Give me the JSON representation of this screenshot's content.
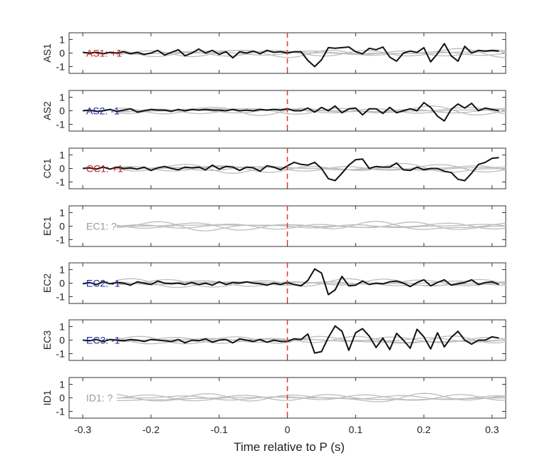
{
  "chart_data": {
    "type": "line",
    "xlabel": "Time relative to P (s)",
    "xlim": [
      -0.32,
      0.32
    ],
    "xticks": [
      -0.3,
      -0.2,
      -0.1,
      0,
      0.1,
      0.2,
      0.3
    ],
    "xtick_labels": [
      "-0.3",
      "-0.2",
      "-0.1",
      "0",
      "0.1",
      "0.2",
      "0.3"
    ],
    "ylim": [
      -1.5,
      1.5
    ],
    "yticks": [
      -1,
      0,
      1
    ],
    "ytick_labels": [
      "-1",
      "0",
      "1"
    ],
    "vline_x": 0,
    "vline_color": "#e8322a",
    "colors": {
      "black_trace": "#111111",
      "gray_trace": "#bdbdbd",
      "positive": "#c8201c",
      "negative": "#1c28a0",
      "unknown": "#9a9a9a"
    },
    "panels": [
      {
        "station": "AS1",
        "annotation": "AS1: +1",
        "polarity": "positive",
        "trace": {
          "x": [
            -0.3,
            -0.29,
            -0.28,
            -0.27,
            -0.26,
            -0.25,
            -0.24,
            -0.23,
            -0.22,
            -0.21,
            -0.2,
            -0.19,
            -0.18,
            -0.17,
            -0.16,
            -0.15,
            -0.14,
            -0.13,
            -0.12,
            -0.11,
            -0.1,
            -0.09,
            -0.08,
            -0.07,
            -0.06,
            -0.05,
            -0.04,
            -0.03,
            -0.02,
            -0.01,
            0,
            0.01,
            0.02,
            0.03,
            0.04,
            0.05,
            0.06,
            0.07,
            0.08,
            0.09,
            0.1,
            0.11,
            0.12,
            0.13,
            0.14,
            0.15,
            0.16,
            0.17,
            0.18,
            0.19,
            0.2,
            0.21,
            0.22,
            0.23,
            0.24,
            0.25,
            0.26,
            0.27,
            0.28,
            0.29,
            0.3,
            0.31
          ],
          "y": [
            0.05,
            0.0,
            0.05,
            -0.05,
            0.05,
            0.0,
            0.1,
            -0.05,
            0.05,
            -0.1,
            0.0,
            0.2,
            -0.15,
            0.05,
            0.25,
            -0.2,
            0.0,
            0.3,
            0.0,
            0.2,
            -0.1,
            0.1,
            -0.35,
            0.1,
            0.0,
            0.15,
            -0.05,
            0.2,
            0.05,
            0.1,
            0.0,
            0.1,
            0.1,
            -0.55,
            -1.0,
            -0.5,
            0.4,
            0.35,
            0.4,
            0.45,
            0.1,
            -0.05,
            0.35,
            0.25,
            0.45,
            -0.3,
            -0.6,
            0.0,
            0.15,
            0.05,
            0.4,
            -0.65,
            -0.05,
            0.7,
            -0.2,
            -0.6,
            0.5,
            0.0,
            0.2,
            0.15,
            0.2,
            0.15
          ]
        }
      },
      {
        "station": "AS2",
        "annotation": "AS2: -1",
        "polarity": "negative",
        "trace": {
          "x": [
            -0.3,
            -0.29,
            -0.28,
            -0.27,
            -0.26,
            -0.25,
            -0.24,
            -0.23,
            -0.22,
            -0.21,
            -0.2,
            -0.19,
            -0.18,
            -0.17,
            -0.16,
            -0.15,
            -0.14,
            -0.13,
            -0.12,
            -0.11,
            -0.1,
            -0.09,
            -0.08,
            -0.07,
            -0.06,
            -0.05,
            -0.04,
            -0.03,
            -0.02,
            -0.01,
            0,
            0.01,
            0.02,
            0.03,
            0.04,
            0.05,
            0.06,
            0.07,
            0.08,
            0.09,
            0.1,
            0.11,
            0.12,
            0.13,
            0.14,
            0.15,
            0.16,
            0.17,
            0.18,
            0.19,
            0.2,
            0.21,
            0.22,
            0.23,
            0.24,
            0.25,
            0.26,
            0.27,
            0.28,
            0.29,
            0.3,
            0.31
          ],
          "y": [
            0.0,
            0.05,
            -0.05,
            0.0,
            0.1,
            -0.05,
            0.05,
            0.15,
            -0.1,
            0.0,
            0.1,
            0.05,
            0.05,
            -0.05,
            0.1,
            0.0,
            0.1,
            0.05,
            0.1,
            0.05,
            0.05,
            0.0,
            0.1,
            0.0,
            0.05,
            0.0,
            0.1,
            0.05,
            0.1,
            0.05,
            0.15,
            0.0,
            0.0,
            0.2,
            -0.1,
            0.25,
            0.0,
            0.35,
            -0.15,
            0.15,
            0.2,
            -0.3,
            0.15,
            0.15,
            -0.2,
            0.25,
            -0.15,
            0.0,
            0.15,
            0.0,
            0.6,
            0.25,
            -0.4,
            -0.75,
            0.1,
            0.5,
            0.2,
            0.55,
            0.0,
            0.2,
            0.1,
            0.0
          ]
        }
      },
      {
        "station": "CC1",
        "annotation": "CC1: +1",
        "polarity": "positive",
        "trace": {
          "x": [
            -0.3,
            -0.29,
            -0.28,
            -0.27,
            -0.26,
            -0.25,
            -0.24,
            -0.23,
            -0.22,
            -0.21,
            -0.2,
            -0.19,
            -0.18,
            -0.17,
            -0.16,
            -0.15,
            -0.14,
            -0.13,
            -0.12,
            -0.11,
            -0.1,
            -0.09,
            -0.08,
            -0.07,
            -0.06,
            -0.05,
            -0.04,
            -0.03,
            -0.02,
            -0.01,
            0,
            0.01,
            0.02,
            0.03,
            0.04,
            0.05,
            0.06,
            0.07,
            0.08,
            0.09,
            0.1,
            0.11,
            0.12,
            0.13,
            0.14,
            0.15,
            0.16,
            0.17,
            0.18,
            0.19,
            0.2,
            0.21,
            0.22,
            0.23,
            0.24,
            0.25,
            0.26,
            0.27,
            0.28,
            0.29,
            0.3,
            0.31
          ],
          "y": [
            0.0,
            0.05,
            -0.05,
            0.1,
            -0.05,
            0.1,
            0.0,
            0.05,
            -0.05,
            0.1,
            -0.15,
            0.05,
            0.15,
            0.0,
            -0.1,
            0.1,
            0.05,
            0.1,
            -0.1,
            0.25,
            -0.05,
            0.15,
            0.1,
            -0.15,
            0.1,
            0.05,
            -0.2,
            0.2,
            0.1,
            -0.1,
            0.2,
            0.45,
            0.3,
            0.25,
            0.45,
            0.0,
            -0.75,
            -0.9,
            -0.35,
            0.25,
            0.65,
            0.7,
            0.0,
            0.15,
            0.1,
            0.1,
            0.4,
            -0.1,
            -0.15,
            0.1,
            -0.1,
            0.0,
            0.0,
            -0.2,
            -0.3,
            -0.8,
            -0.9,
            -0.35,
            0.3,
            0.45,
            0.75,
            0.8
          ]
        }
      },
      {
        "station": "EC1",
        "annotation": "EC1: ?",
        "polarity": "unknown",
        "trace": null
      },
      {
        "station": "EC2",
        "annotation": "EC2: -1",
        "polarity": "negative",
        "trace": {
          "x": [
            -0.3,
            -0.29,
            -0.28,
            -0.27,
            -0.26,
            -0.25,
            -0.24,
            -0.23,
            -0.22,
            -0.21,
            -0.2,
            -0.19,
            -0.18,
            -0.17,
            -0.16,
            -0.15,
            -0.14,
            -0.13,
            -0.12,
            -0.11,
            -0.1,
            -0.09,
            -0.08,
            -0.07,
            -0.06,
            -0.05,
            -0.04,
            -0.03,
            -0.02,
            -0.01,
            0,
            0.01,
            0.02,
            0.03,
            0.04,
            0.05,
            0.06,
            0.07,
            0.08,
            0.09,
            0.1,
            0.11,
            0.12,
            0.13,
            0.14,
            0.15,
            0.16,
            0.17,
            0.18,
            0.19,
            0.2,
            0.21,
            0.22,
            0.23,
            0.24,
            0.25,
            0.26,
            0.27,
            0.28,
            0.29,
            0.3,
            0.31
          ],
          "y": [
            -0.05,
            0.05,
            -0.1,
            0.1,
            -0.05,
            0.05,
            0.0,
            -0.15,
            0.1,
            0.0,
            -0.1,
            0.15,
            0.0,
            -0.05,
            0.0,
            -0.1,
            0.05,
            -0.1,
            0.0,
            -0.15,
            0.1,
            -0.1,
            0.05,
            0.0,
            0.1,
            0.0,
            -0.05,
            -0.15,
            0.0,
            -0.1,
            0.05,
            -0.1,
            -0.2,
            0.2,
            1.05,
            0.75,
            -0.85,
            -0.5,
            0.5,
            -0.2,
            -0.15,
            0.15,
            -0.1,
            0.0,
            -0.05,
            0.1,
            0.15,
            0.0,
            -0.25,
            0.05,
            0.25,
            -0.2,
            0.05,
            0.25,
            -0.15,
            -0.05,
            0.05,
            0.25,
            -0.1,
            0.05,
            0.1,
            -0.1
          ]
        }
      },
      {
        "station": "EC3",
        "annotation": "EC3: -1",
        "polarity": "negative",
        "trace": {
          "x": [
            -0.3,
            -0.29,
            -0.28,
            -0.27,
            -0.26,
            -0.25,
            -0.24,
            -0.23,
            -0.22,
            -0.21,
            -0.2,
            -0.19,
            -0.18,
            -0.17,
            -0.16,
            -0.15,
            -0.14,
            -0.13,
            -0.12,
            -0.11,
            -0.1,
            -0.09,
            -0.08,
            -0.07,
            -0.06,
            -0.05,
            -0.04,
            -0.03,
            -0.02,
            -0.01,
            0,
            0.01,
            0.02,
            0.03,
            0.04,
            0.05,
            0.06,
            0.07,
            0.08,
            0.09,
            0.1,
            0.11,
            0.12,
            0.13,
            0.14,
            0.15,
            0.16,
            0.17,
            0.18,
            0.19,
            0.2,
            0.21,
            0.22,
            0.23,
            0.24,
            0.25,
            0.26,
            0.27,
            0.28,
            0.29,
            0.3,
            0.31
          ],
          "y": [
            0.0,
            -0.05,
            0.05,
            -0.1,
            0.05,
            0.0,
            -0.05,
            0.05,
            0.0,
            -0.1,
            0.05,
            0.0,
            -0.05,
            -0.1,
            0.05,
            -0.2,
            0.0,
            -0.05,
            0.1,
            -0.15,
            0.0,
            0.05,
            -0.2,
            0.1,
            0.0,
            -0.1,
            0.05,
            -0.15,
            0.0,
            -0.1,
            -0.1,
            0.1,
            0.05,
            0.45,
            -0.95,
            -0.85,
            0.2,
            1.05,
            0.65,
            -0.75,
            0.55,
            0.85,
            0.3,
            -0.55,
            0.15,
            -0.7,
            0.5,
            0.0,
            -0.6,
            0.8,
            0.25,
            -0.65,
            0.55,
            -0.5,
            0.2,
            0.65,
            0.0,
            -0.3,
            0.0,
            0.0,
            0.25,
            0.15
          ]
        }
      },
      {
        "station": "ID1",
        "annotation": "ID1: ?",
        "polarity": "unknown",
        "trace": null
      }
    ]
  }
}
